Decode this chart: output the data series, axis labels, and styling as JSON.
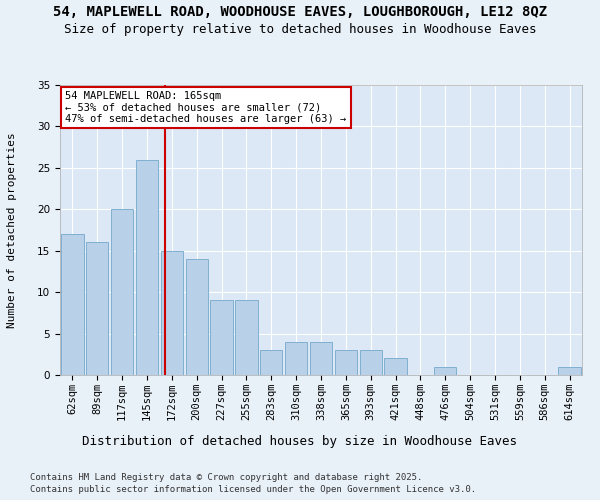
{
  "title1": "54, MAPLEWELL ROAD, WOODHOUSE EAVES, LOUGHBOROUGH, LE12 8QZ",
  "title2": "Size of property relative to detached houses in Woodhouse Eaves",
  "xlabel": "Distribution of detached houses by size in Woodhouse Eaves",
  "ylabel": "Number of detached properties",
  "categories": [
    "62sqm",
    "89sqm",
    "117sqm",
    "145sqm",
    "172sqm",
    "200sqm",
    "227sqm",
    "255sqm",
    "283sqm",
    "310sqm",
    "338sqm",
    "365sqm",
    "393sqm",
    "421sqm",
    "448sqm",
    "476sqm",
    "504sqm",
    "531sqm",
    "559sqm",
    "586sqm",
    "614sqm"
  ],
  "values": [
    17,
    16,
    20,
    26,
    15,
    14,
    9,
    9,
    3,
    4,
    4,
    3,
    3,
    2,
    0,
    1,
    0,
    0,
    0,
    0,
    1
  ],
  "bar_color": "#b8d0e8",
  "bar_edge_color": "#7fafd0",
  "vline_x_index": 3.74,
  "annotation_text": "54 MAPLEWELL ROAD: 165sqm\n← 53% of detached houses are smaller (72)\n47% of semi-detached houses are larger (63) →",
  "annotation_box_color": "#ffffff",
  "annotation_box_edge_color": "#cc0000",
  "vline_color": "#cc0000",
  "ylim": [
    0,
    35
  ],
  "yticks": [
    0,
    5,
    10,
    15,
    20,
    25,
    30,
    35
  ],
  "background_color": "#e8f0f8",
  "plot_background_color": "#dce8f5",
  "footer_line1": "Contains HM Land Registry data © Crown copyright and database right 2025.",
  "footer_line2": "Contains public sector information licensed under the Open Government Licence v3.0.",
  "title1_fontsize": 10,
  "title2_fontsize": 9,
  "xlabel_fontsize": 9,
  "ylabel_fontsize": 8,
  "tick_fontsize": 7.5,
  "annotation_fontsize": 7.5,
  "footer_fontsize": 6.5
}
